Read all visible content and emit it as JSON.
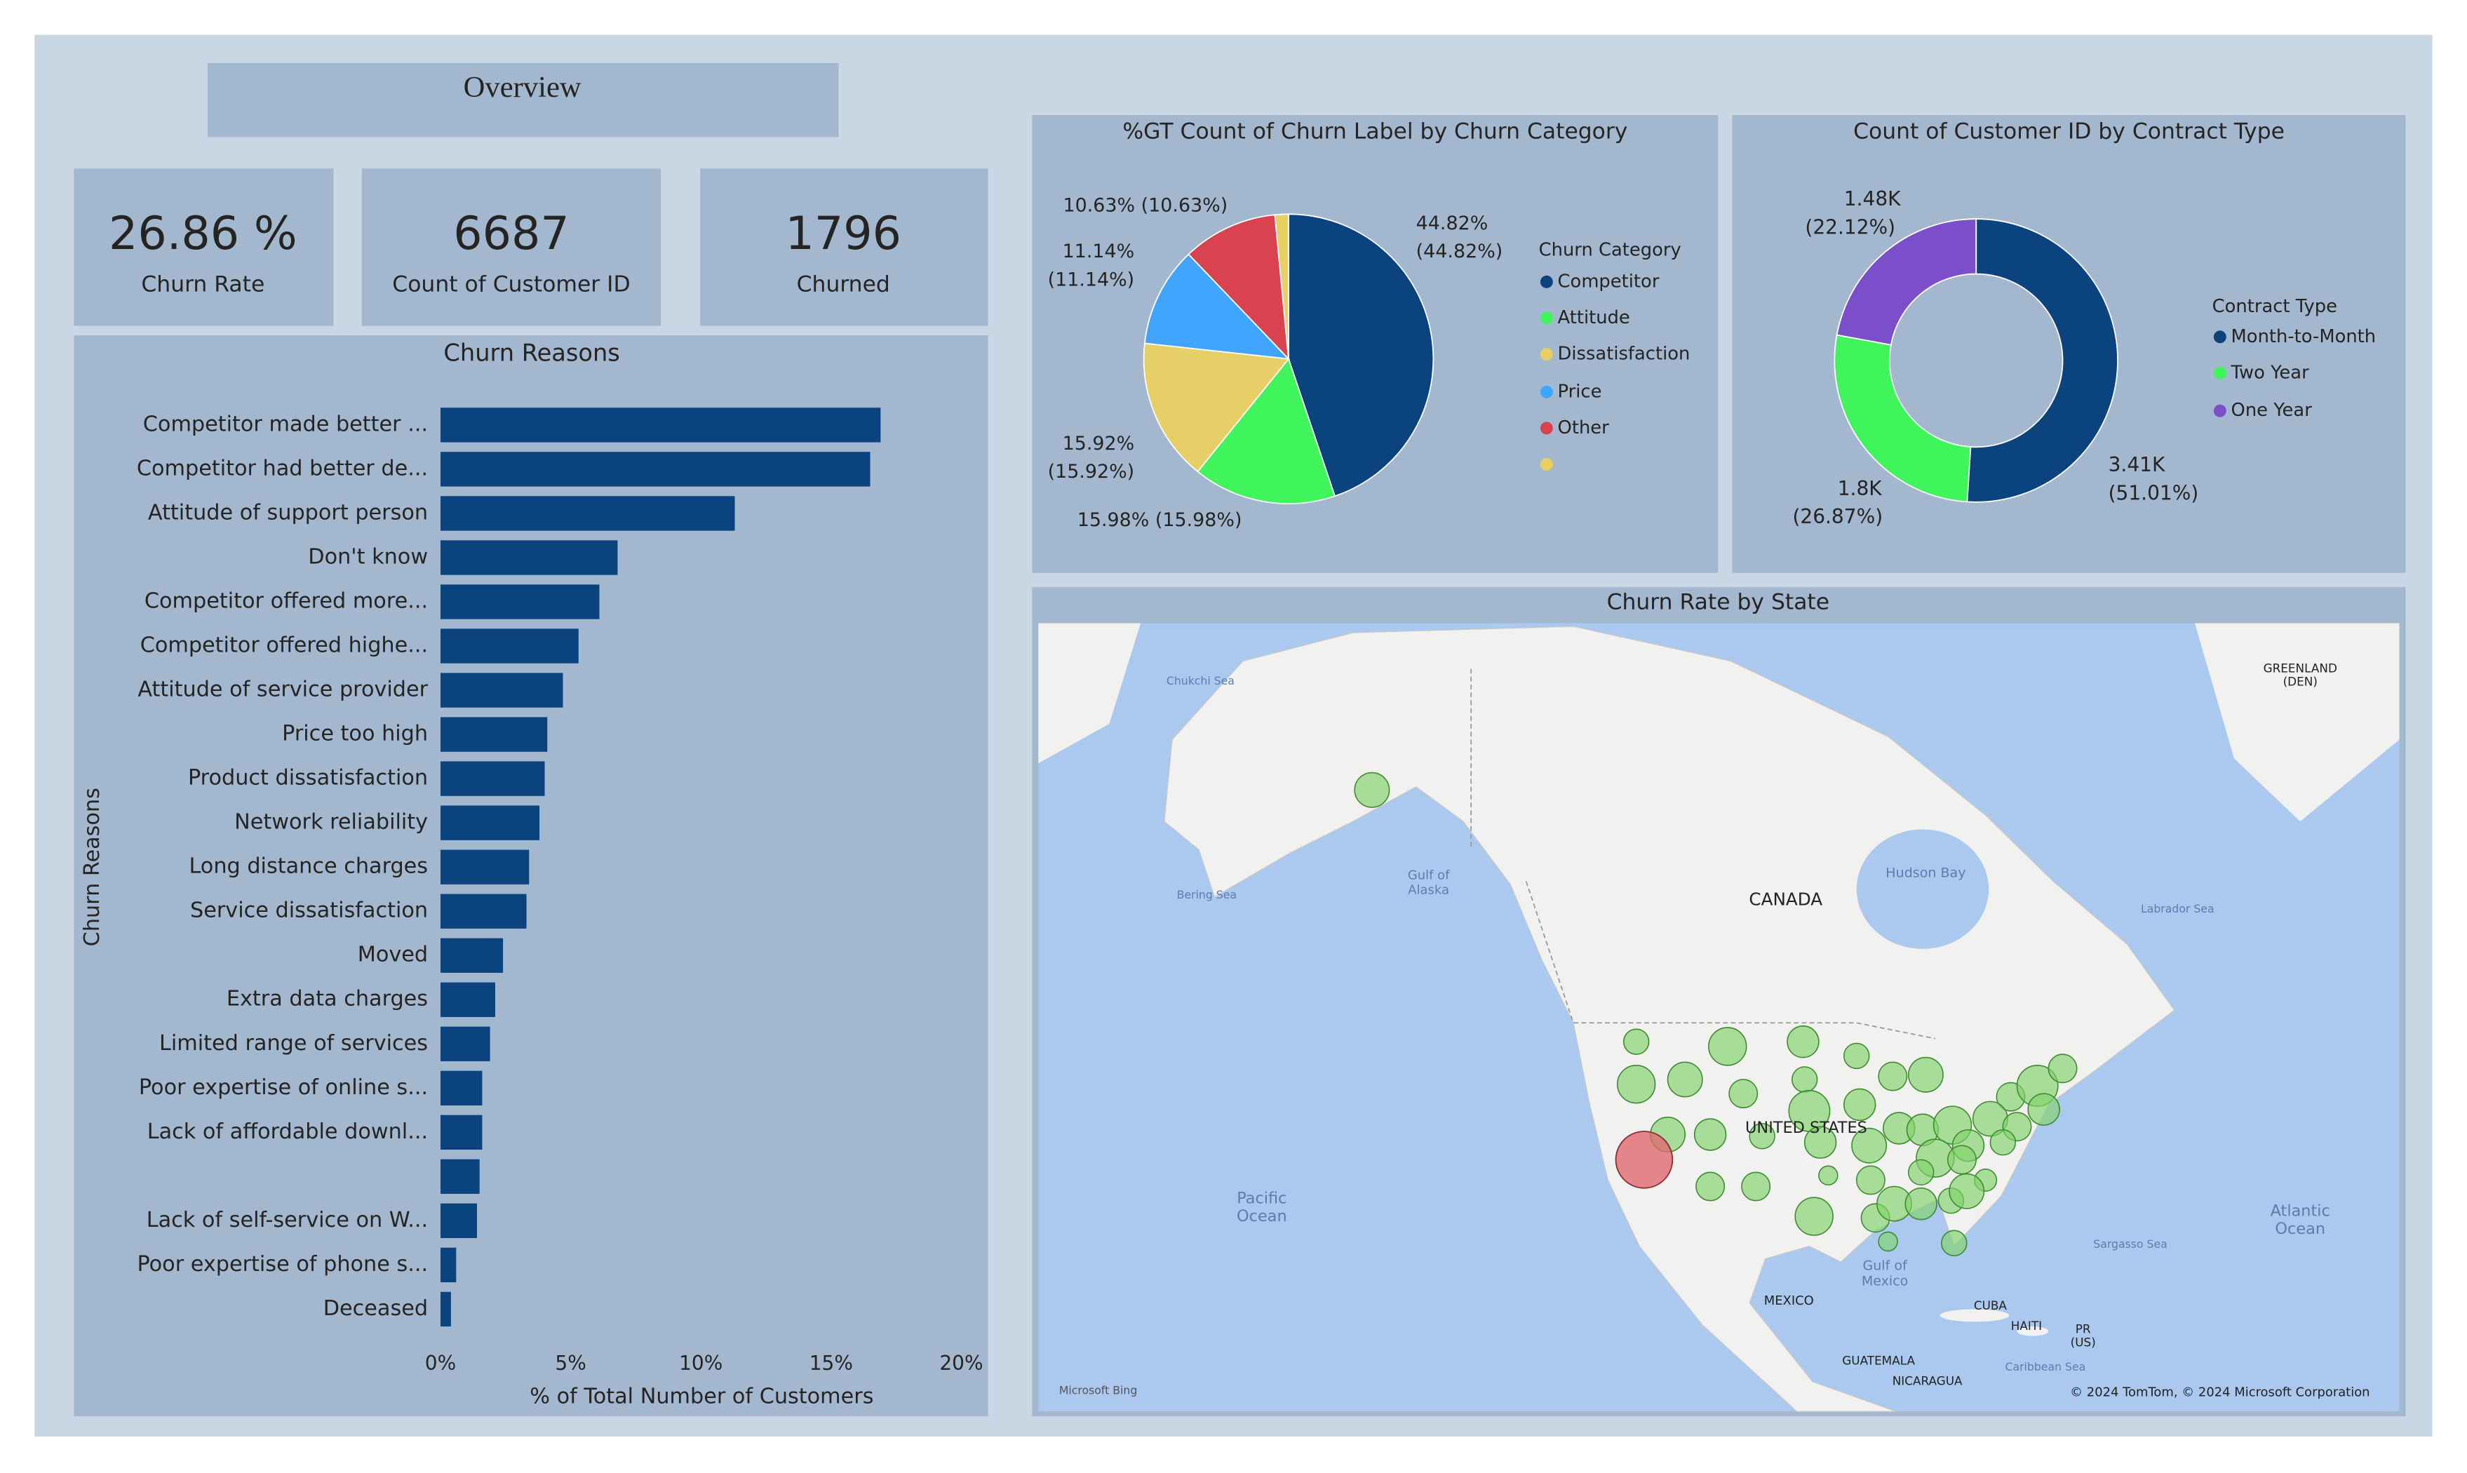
{
  "header": {
    "title": "Overview"
  },
  "cards": [
    {
      "value": "26.86 %",
      "label": "Churn Rate"
    },
    {
      "value": 6687,
      "label": "Count of Customer ID"
    },
    {
      "value": 1796,
      "label": "Churned"
    }
  ],
  "chart_data": [
    {
      "type": "bar",
      "orientation": "horizontal",
      "title": "Churn Reasons",
      "categories": [
        "Competitor made better ...",
        "Competitor had better de...",
        "Attitude of support person",
        "Don't know",
        "Competitor offered more...",
        "Competitor offered highe...",
        "Attitude of service provider",
        "Price too high",
        "Product dissatisfaction",
        "Network reliability",
        "Long distance charges",
        "Service dissatisfaction",
        "Moved",
        "Extra data charges",
        "Limited range of services",
        "Poor expertise of online s...",
        "Lack of affordable downl...",
        null,
        "Lack of self-service on W...",
        "Poor expertise of phone s...",
        "Deceased"
      ],
      "values": [
        16.9,
        16.5,
        11.3,
        6.8,
        6.1,
        5.3,
        4.7,
        4.1,
        4.0,
        3.8,
        3.4,
        3.3,
        2.4,
        2.1,
        1.9,
        1.6,
        1.6,
        1.5,
        1.4,
        0.6,
        0.4
      ],
      "color": "#0b437e",
      "xlim": [
        0,
        20
      ],
      "xticks": [
        {
          "value": 0,
          "label": "0%"
        },
        {
          "value": 5,
          "label": "5%"
        },
        {
          "value": 10,
          "label": "10%"
        },
        {
          "value": 15,
          "label": "15%"
        },
        {
          "value": 20,
          "label": "20%"
        }
      ],
      "x_label": "% of Total Number of Customers",
      "y_label": "Churn Reasons"
    },
    {
      "type": "pie",
      "title": "%GT Count of Churn Label by Churn Category",
      "legend_title": "Churn Category",
      "categories": [
        "Competitor",
        "Attitude",
        "Dissatisfaction",
        "Price",
        "Other",
        null
      ],
      "values": [
        44.82,
        15.98,
        15.92,
        11.14,
        10.63,
        1.51
      ],
      "value_labels": [
        "44.82% (44.82%)",
        "15.98% (15.98%)",
        "15.92% (15.92%)",
        "11.14% (11.14%)",
        "10.63% (10.63%)",
        null
      ],
      "colors": [
        "#0b437e",
        "#3ff55b",
        "#e6cf66",
        "#41a5ff",
        "#d9434f",
        "#e8d060"
      ]
    },
    {
      "type": "donut",
      "title": "Count of Customer ID by Contract Type",
      "legend_title": "Contract Type",
      "categories": [
        "Month-to-Month",
        "Two Year",
        "One Year"
      ],
      "values": [
        3411,
        1797,
        1479
      ],
      "value_labels": [
        "3.41K",
        "1.8K",
        "1.48K"
      ],
      "percent_labels": [
        "(51.01%)",
        "(26.87%)",
        "(22.12%)"
      ],
      "colors": [
        "#0b437e",
        "#3ff55b",
        "#7b4fc9"
      ]
    }
  ],
  "map": {
    "title": "Churn Rate by State",
    "labels": [
      "Chukchi Sea",
      "Bering Sea",
      "Gulf of Alaska",
      "CANADA",
      "Hudson Bay",
      "Labrador Sea",
      "GREENLAND (DEN)",
      "UNITED STATES",
      "Pacific Ocean",
      "Atlantic Ocean",
      "Sargasso Sea",
      "Gulf of Mexico",
      "MEXICO",
      "CUBA",
      "HAITI",
      "PR (US)",
      "GUATEMALA",
      "NICARAGUA",
      "Caribbean Sea",
      "Microsoft Bing",
      "© 2024 TomTom, © 2024 Microsoft Corporation"
    ]
  }
}
